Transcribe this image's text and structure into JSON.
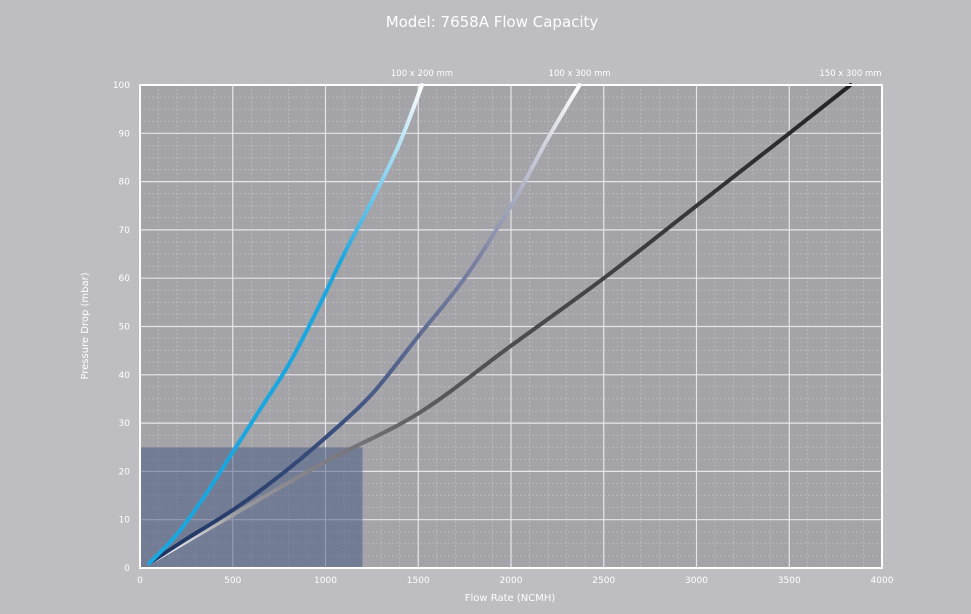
{
  "chart_data": {
    "type": "line",
    "title": "Model: 7658A Flow Capacity",
    "xlabel": "Flow Rate (NCMH)",
    "ylabel": "Pressure Drop (mbar)",
    "xlim": [
      0,
      4000
    ],
    "ylim": [
      0,
      100
    ],
    "x_ticks": [
      "0",
      "500",
      "1000",
      "1500",
      "2000",
      "2500",
      "3000",
      "3500",
      "4000"
    ],
    "y_ticks": [
      "0",
      "10",
      "20",
      "30",
      "40",
      "50",
      "60",
      "70",
      "80",
      "90",
      "100"
    ],
    "grid": true,
    "highlight_region": {
      "x": [
        0,
        1200
      ],
      "y": [
        0,
        25
      ]
    },
    "series": [
      {
        "name": "100 x 200 mm",
        "color_start": "#1aa7df",
        "color_end": "#ffffff",
        "x": [
          50,
          200,
          350,
          500,
          650,
          800,
          950,
          1100,
          1250,
          1400,
          1520
        ],
        "y": [
          1,
          7,
          15,
          24,
          33,
          42,
          53,
          65,
          76,
          88,
          100
        ]
      },
      {
        "name": "100 x 300 mm",
        "color_start": "#1d3461",
        "color_end": "#ffffff",
        "x": [
          50,
          250,
          500,
          750,
          1000,
          1250,
          1500,
          1750,
          2000,
          2200,
          2370
        ],
        "y": [
          1,
          6,
          12,
          19,
          27,
          36,
          48,
          60,
          75,
          89,
          100
        ]
      },
      {
        "name": "150 x 300 mm",
        "color_start": "#ffffff",
        "color_end": "#232326",
        "x": [
          50,
          500,
          1000,
          1500,
          2000,
          2500,
          3000,
          3500,
          3830
        ],
        "y": [
          1,
          11,
          22,
          32,
          46,
          60,
          75,
          90,
          100
        ]
      }
    ]
  }
}
